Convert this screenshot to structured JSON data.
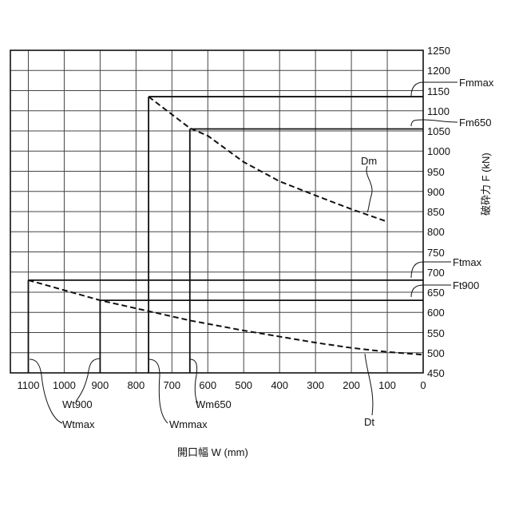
{
  "chart_data": {
    "type": "line",
    "xlabel": "開口幅 W (mm)",
    "ylabel": "破砕力 F (kN)",
    "xlim": [
      1150,
      0
    ],
    "ylim": [
      450,
      1250
    ],
    "x_reversed": true,
    "grid": true,
    "xticks": [
      1100,
      1000,
      900,
      800,
      700,
      600,
      500,
      400,
      300,
      200,
      100,
      0
    ],
    "yticks": [
      450,
      500,
      550,
      600,
      650,
      700,
      750,
      800,
      850,
      900,
      950,
      1000,
      1050,
      1100,
      1150,
      1200,
      1250
    ],
    "series": [
      {
        "name": "Dm",
        "style": "dashed",
        "x": [
          765,
          650,
          600,
          500,
          400,
          300,
          200,
          100
        ],
        "y": [
          1135,
          1057,
          1038,
          973,
          925,
          890,
          856,
          825
        ]
      },
      {
        "name": "Dt",
        "style": "dashed",
        "x": [
          1100,
          1000,
          900,
          750,
          650,
          500,
          400,
          300,
          200,
          100,
          0
        ],
        "y": [
          680,
          655,
          630,
          600,
          580,
          555,
          540,
          525,
          512,
          502,
          495
        ]
      }
    ],
    "reference_lines": [
      {
        "name": "Fmmax",
        "axis": "y",
        "value": 1135,
        "from_x": 765
      },
      {
        "name": "Fm650",
        "axis": "y",
        "value": 1055,
        "from_x": 650
      },
      {
        "name": "Ftmax",
        "axis": "y",
        "value": 680,
        "from_x": 1100
      },
      {
        "name": "Ft900",
        "axis": "y",
        "value": 630,
        "from_x": 900
      },
      {
        "name": "Wmmax",
        "axis": "x",
        "value": 765,
        "to_y": 1135
      },
      {
        "name": "Wm650",
        "axis": "x",
        "value": 650,
        "to_y": 1055
      },
      {
        "name": "Wtmax",
        "axis": "x",
        "value": 1100,
        "to_y": 680
      },
      {
        "name": "Wt900",
        "axis": "x",
        "value": 900,
        "to_y": 630
      }
    ],
    "annotations": [
      "Fmmax",
      "Fm650",
      "Ftmax",
      "Ft900",
      "Dm",
      "Dt",
      "Wt900",
      "Wtmax",
      "Wmmax",
      "Wm650"
    ]
  }
}
